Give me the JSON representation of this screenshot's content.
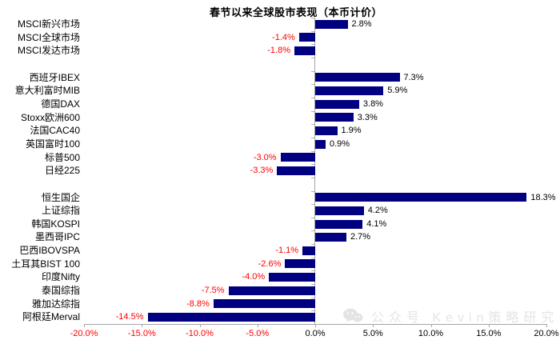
{
  "title": "春节以来全球股市表现（本币计价）",
  "watermark": {
    "icon": "wechat-icon",
    "text": "公众号 Kevin策略研究"
  },
  "chart_data": {
    "type": "bar",
    "orientation": "horizontal",
    "title": "春节以来全球股市表现（本币计价）",
    "unit": "%",
    "xlim": [
      -20,
      20
    ],
    "x_tick_values": [
      -20,
      -15,
      -10,
      -5,
      0,
      5,
      10,
      15,
      20
    ],
    "x_tick_labels": [
      "-20.0%",
      "-15.0%",
      "-10.0%",
      "-5.0%",
      "0.0%",
      "5.0%",
      "10.0%",
      "15.0%",
      "20.0%"
    ],
    "bar_color": "#000080",
    "negative_text_color": "#ff0000",
    "positive_text_color": "#000000",
    "axis_color": "#a6a6a6",
    "grid": false,
    "legend": false,
    "groups": [
      {
        "name": "msci-indices",
        "rows": [
          {
            "label": "MSCI新兴市场",
            "value": 2.8,
            "display": "2.8%"
          },
          {
            "label": "MSCI全球市场",
            "value": -1.4,
            "display": "-1.4%"
          },
          {
            "label": "MSCI发达市场",
            "value": -1.8,
            "display": "-1.8%"
          }
        ]
      },
      {
        "name": "developed-markets",
        "rows": [
          {
            "label": "西班牙IBEX",
            "value": 7.3,
            "display": "7.3%"
          },
          {
            "label": "意大利富时MIB",
            "value": 5.9,
            "display": "5.9%"
          },
          {
            "label": "德国DAX",
            "value": 3.8,
            "display": "3.8%"
          },
          {
            "label": "Stoxx欧洲600",
            "value": 3.3,
            "display": "3.3%"
          },
          {
            "label": "法国CAC40",
            "value": 1.9,
            "display": "1.9%"
          },
          {
            "label": "英国富时100",
            "value": 0.9,
            "display": "0.9%"
          },
          {
            "label": "标普500",
            "value": -3.0,
            "display": "-3.0%"
          },
          {
            "label": "日经225",
            "value": -3.3,
            "display": "-3.3%"
          }
        ]
      },
      {
        "name": "emerging-markets",
        "rows": [
          {
            "label": "恒生国企",
            "value": 18.3,
            "display": "18.3%"
          },
          {
            "label": "上证综指",
            "value": 4.2,
            "display": "4.2%"
          },
          {
            "label": "韩国KOSPI",
            "value": 4.1,
            "display": "4.1%"
          },
          {
            "label": "墨西哥IPC",
            "value": 2.7,
            "display": "2.7%"
          },
          {
            "label": "巴西IBOVSPA",
            "value": -1.1,
            "display": "-1.1%"
          },
          {
            "label": "土耳其BIST 100",
            "value": -2.6,
            "display": "-2.6%"
          },
          {
            "label": "印度Nifty",
            "value": -4.0,
            "display": "-4.0%"
          },
          {
            "label": "泰国综指",
            "value": -7.5,
            "display": "-7.5%"
          },
          {
            "label": "雅加达综指",
            "value": -8.8,
            "display": "-8.8%"
          },
          {
            "label": "阿根廷Merval",
            "value": -14.5,
            "display": "-14.5%"
          }
        ]
      }
    ]
  }
}
